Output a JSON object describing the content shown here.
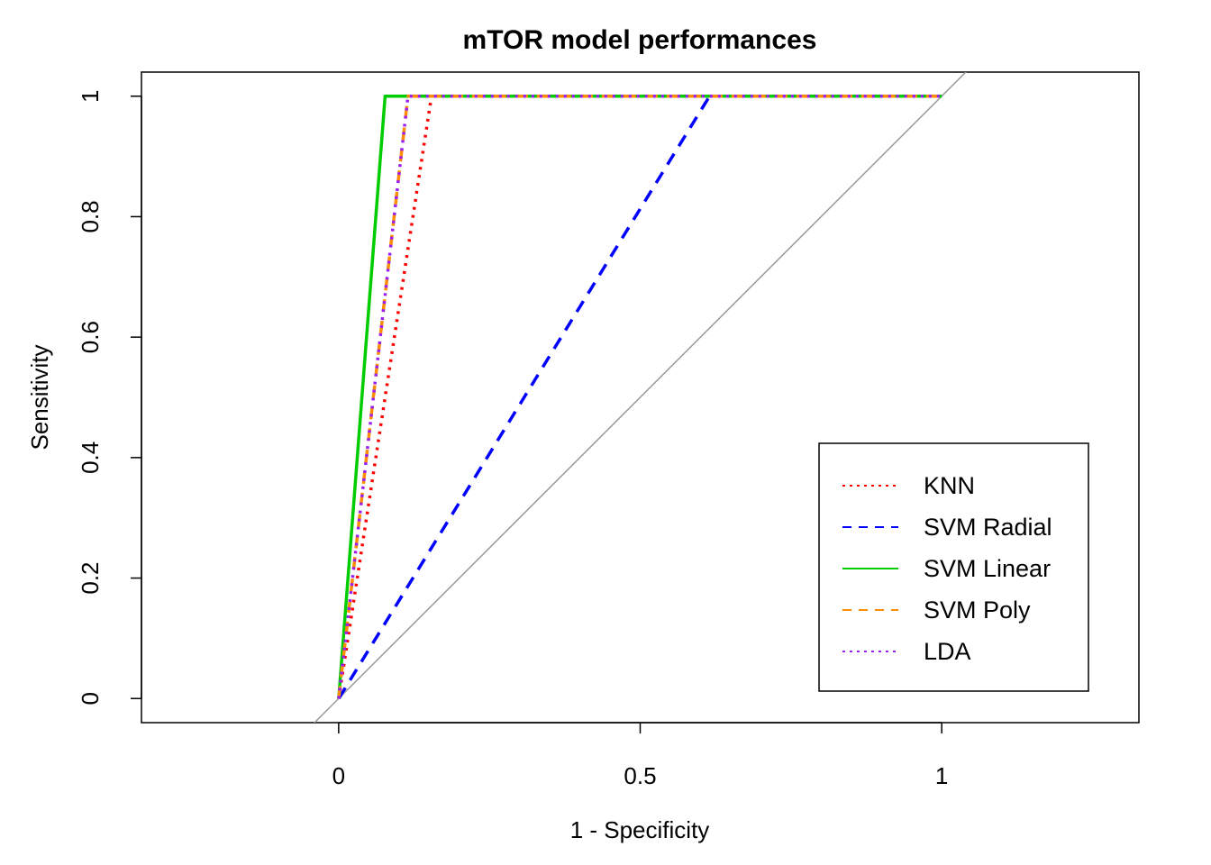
{
  "chart_data": {
    "type": "line",
    "title": "mTOR model performances",
    "xlabel": "1 - Specificity",
    "ylabel": "Sensitivity",
    "xlim": [
      -0.327,
      1.327
    ],
    "ylim": [
      -0.04,
      1.04
    ],
    "xticks": [
      0,
      0.5,
      1
    ],
    "xtick_labels": [
      "0",
      "0.5",
      "1"
    ],
    "yticks": [
      0,
      0.2,
      0.4,
      0.6,
      0.8,
      1
    ],
    "ytick_labels": [
      "0",
      "0.2",
      "0.4",
      "0.6",
      "0.8",
      "1"
    ],
    "grid": false,
    "legend_position": "bottom-right",
    "reference_line": {
      "color": "#999999",
      "points": [
        [
          0,
          0
        ],
        [
          1,
          1
        ]
      ]
    },
    "series": [
      {
        "name": "KNN",
        "color": "#ff0000",
        "dash": "dotted",
        "x": [
          0,
          0.154,
          1
        ],
        "y": [
          0,
          1,
          1
        ]
      },
      {
        "name": "SVM Radial",
        "color": "#0000ff",
        "dash": "dashed",
        "x": [
          0,
          0.615,
          1
        ],
        "y": [
          0,
          1,
          1
        ]
      },
      {
        "name": "SVM Linear",
        "color": "#00cd00",
        "dash": "solid",
        "x": [
          0,
          0.077,
          1
        ],
        "y": [
          0,
          1,
          1
        ]
      },
      {
        "name": "SVM Poly",
        "color": "#ff8c00",
        "dash": "dashed",
        "x": [
          0,
          0.115,
          1
        ],
        "y": [
          0,
          1,
          1
        ]
      },
      {
        "name": "LDA",
        "color": "#9a20f0",
        "dash": "dotted",
        "x": [
          0,
          0.115,
          1
        ],
        "y": [
          0,
          1,
          1
        ]
      }
    ]
  }
}
